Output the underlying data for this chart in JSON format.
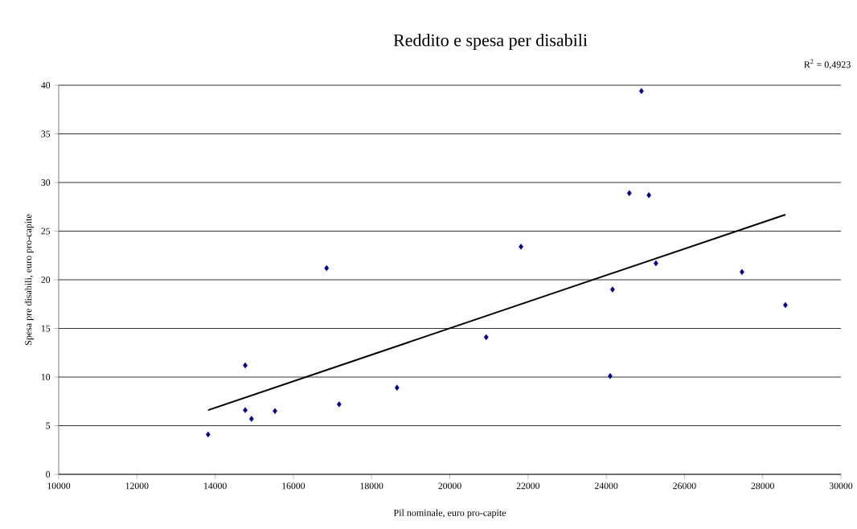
{
  "chart_data": {
    "type": "scatter",
    "title": "Reddito e spesa per disabili",
    "xlabel": "Pil nominale, euro pro-capite",
    "ylabel": "Spesa pre disabili, euro pro-capite",
    "annotations": [
      "R$^{2}$ = 0,4923"
    ],
    "xlim": [
      10000,
      30000
    ],
    "xticks": [
      10000,
      12000,
      14000,
      16000,
      18000,
      20000,
      22000,
      24000,
      26000,
      28000,
      30000
    ],
    "ylim": [
      0,
      40
    ],
    "yticks": [
      0,
      5,
      10,
      15,
      20,
      25,
      30,
      35,
      40
    ],
    "grid": "y",
    "series": [
      {
        "color": "#000080",
        "marker": "diamond",
        "x": [
          13820,
          14770,
          14770,
          14930,
          15530,
          16850,
          17170,
          18650,
          20930,
          21820,
          24100,
          24160,
          24590,
          24900,
          25090,
          25270,
          27470,
          28580
        ],
        "values": [
          4.1,
          6.6,
          11.2,
          5.7,
          6.5,
          21.2,
          7.2,
          8.9,
          14.1,
          23.4,
          10.1,
          19.0,
          28.9,
          39.4,
          28.7,
          21.7,
          20.8,
          17.4
        ]
      },
      {
        "type": "line",
        "color": "#000000",
        "marker": "none",
        "x": [
          13820,
          28580
        ],
        "values": [
          6.6,
          26.7
        ]
      }
    ]
  }
}
